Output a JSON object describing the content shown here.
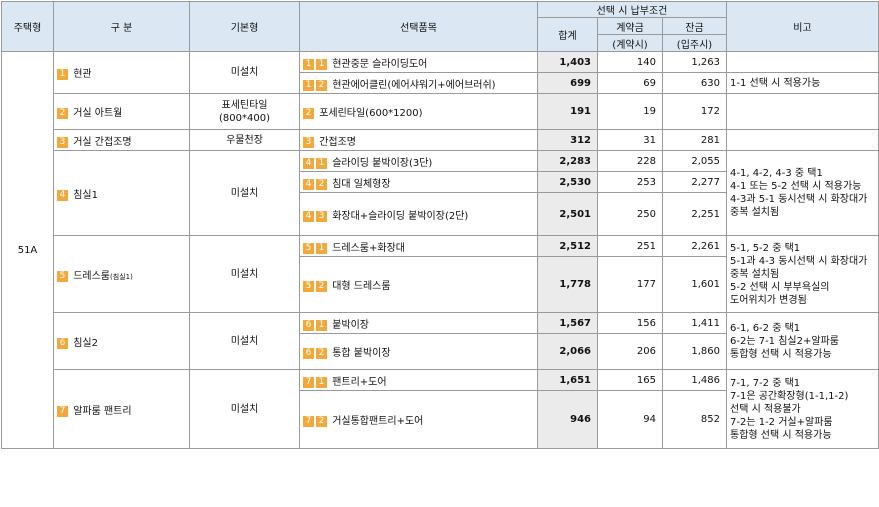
{
  "header": {
    "type": "주택형",
    "category": "구 분",
    "basic": "기본형",
    "item": "선택품목",
    "payment": "선택 시 납부조건",
    "total": "합계",
    "deposit": "계약금",
    "deposit_sub": "(계약시)",
    "balance": "잔금",
    "balance_sub": "(입주시)",
    "note": "비고"
  },
  "housing_type": "51A",
  "groups": [
    {
      "no": "1",
      "name": "현관",
      "basic": "미설치",
      "rows": [
        {
          "code": "1",
          "sub": "1",
          "item": "현관중문 슬라이딩도어",
          "total": "1,403",
          "deposit": "140",
          "balance": "1,263"
        },
        {
          "code": "1",
          "sub": "2",
          "item": "현관에어클린(에어샤워기+에어브러쉬)",
          "total": "699",
          "deposit": "69",
          "balance": "630"
        }
      ]
    },
    {
      "no": "2",
      "name": "거실 아트월",
      "basic": "표세틴타일\n(800*400)",
      "rows": [
        {
          "code": "2",
          "sub": "",
          "item": "포세린타일(600*1200)",
          "total": "191",
          "deposit": "19",
          "balance": "172"
        }
      ]
    },
    {
      "no": "3",
      "name": "거실 간접조명",
      "basic": "우물천장",
      "rows": [
        {
          "code": "3",
          "sub": "",
          "item": "간접조명",
          "total": "312",
          "deposit": "31",
          "balance": "281"
        }
      ]
    },
    {
      "no": "4",
      "name": "침실1",
      "basic": "미설치",
      "rows": [
        {
          "code": "4",
          "sub": "1",
          "item": "슬라이딩 붙박이장(3단)",
          "total": "2,283",
          "deposit": "228",
          "balance": "2,055"
        },
        {
          "code": "4",
          "sub": "2",
          "item": "침대 일체형장",
          "total": "2,530",
          "deposit": "253",
          "balance": "2,277"
        },
        {
          "code": "4",
          "sub": "3",
          "item": "화장대+슬라이딩 붙박이장(2단)",
          "total": "2,501",
          "deposit": "250",
          "balance": "2,251"
        }
      ]
    },
    {
      "no": "5",
      "name": "드레스룸",
      "name_small": "(침실1)",
      "basic": "미설치",
      "rows": [
        {
          "code": "5",
          "sub": "1",
          "item": "드레스룸+화장대",
          "total": "2,512",
          "deposit": "251",
          "balance": "2,261"
        },
        {
          "code": "5",
          "sub": "2",
          "item": "대형 드레스룸",
          "total": "1,778",
          "deposit": "177",
          "balance": "1,601"
        }
      ]
    },
    {
      "no": "6",
      "name": "침실2",
      "basic": "미설치",
      "rows": [
        {
          "code": "6",
          "sub": "1",
          "item": "붙박이장",
          "total": "1,567",
          "deposit": "156",
          "balance": "1,411"
        },
        {
          "code": "6",
          "sub": "2",
          "item": "통합 붙박이장",
          "total": "2,066",
          "deposit": "206",
          "balance": "1,860"
        }
      ]
    },
    {
      "no": "7",
      "name": "알파룸 팬트리",
      "basic": "미설치",
      "rows": [
        {
          "code": "7",
          "sub": "1",
          "item": "팬트리+도어",
          "total": "1,651",
          "deposit": "165",
          "balance": "1,486"
        },
        {
          "code": "7",
          "sub": "2",
          "item": "거실통합팬트리+도어",
          "total": "946",
          "deposit": "94",
          "balance": "852"
        }
      ]
    }
  ],
  "notes": {
    "g1_row2": [
      "1-1 선택 시 적용가능"
    ],
    "g4": [
      "4-1, 4-2, 4-3 중 택1",
      "4-1 또는 5-2 선택 시 적용가능",
      "4-3과 5-1 동시선택 시 화장대가",
      "중복 설치됨"
    ],
    "g5": [
      "5-1, 5-2 중 택1",
      "5-1과 4-3 동시선택 시 화장대가",
      "중복 설치됨",
      "5-2 선택 시 부부욕실의",
      "도어위치가 변경됨"
    ],
    "g6": [
      "6-1, 6-2 중 택1",
      "6-2는 7-1 침실2+알파룸",
      "통합형 선택 시 적용가능"
    ],
    "g7": [
      "7-1, 7-2 중 택1",
      "7-1은 공간확장형(1-1,1-2)",
      "선택 시 적용불가",
      "7-2는 1-2 거실+알파룸",
      "통합형 선택 시 적용가능"
    ]
  },
  "colors": {
    "header_bg": "#dbe8f4",
    "badge": "#f2a93b",
    "badge_blue": "#4a7ac4",
    "total_col_bg": "#ebebeb"
  }
}
